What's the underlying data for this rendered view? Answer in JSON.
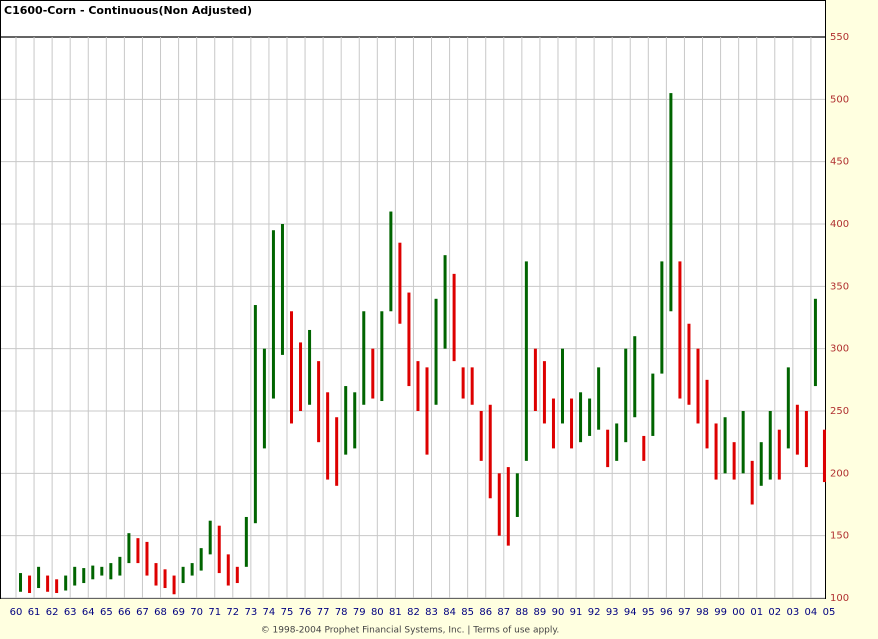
{
  "chart_data": {
    "type": "range-bar",
    "title": "C1600-Corn - Continuous(Non Adjusted)",
    "footer": "© 1998-2004 Prophet Financial Systems, Inc. | Terms of use apply.",
    "up_color": "#006400",
    "down_color": "#dd0000",
    "grid": true,
    "x": [
      1960.25,
      1960.75,
      1961.25,
      1961.75,
      1962.25,
      1962.75,
      1963.25,
      1963.75,
      1964.25,
      1964.75,
      1965.25,
      1965.75,
      1966.25,
      1966.75,
      1967.25,
      1967.75,
      1968.25,
      1968.75,
      1969.25,
      1969.75,
      1970.25,
      1970.75,
      1971.25,
      1971.75,
      1972.25,
      1972.75,
      1973.25,
      1973.75,
      1974.25,
      1974.75,
      1975.25,
      1975.75,
      1976.25,
      1976.75,
      1977.25,
      1977.75,
      1978.25,
      1978.75,
      1979.25,
      1979.75,
      1980.25,
      1980.75,
      1981.25,
      1981.75,
      1982.25,
      1982.75,
      1983.25,
      1983.75,
      1984.25,
      1984.75,
      1985.25,
      1985.75,
      1986.25,
      1986.75,
      1987.25,
      1987.75,
      1988.25,
      1988.75,
      1989.25,
      1989.75,
      1990.25,
      1990.75,
      1991.25,
      1991.75,
      1992.25,
      1992.75,
      1993.25,
      1993.75,
      1994.25,
      1994.75,
      1995.25,
      1995.75,
      1996.25,
      1996.75,
      1997.25,
      1997.75,
      1998.25,
      1998.75,
      1999.25,
      1999.75,
      2000.25,
      2000.75,
      2001.25,
      2001.75,
      2002.25,
      2002.75,
      2003.25,
      2003.75,
      2004.25,
      2004.75
    ],
    "high": [
      120,
      118,
      125,
      118,
      115,
      118,
      125,
      124,
      126,
      125,
      128,
      133,
      152,
      148,
      145,
      128,
      123,
      118,
      125,
      128,
      140,
      162,
      158,
      135,
      125,
      165,
      335,
      300,
      395,
      400,
      330,
      305,
      315,
      290,
      265,
      245,
      270,
      265,
      330,
      300,
      330,
      410,
      385,
      345,
      290,
      285,
      340,
      375,
      360,
      285,
      285,
      250,
      255,
      200,
      205,
      200,
      370,
      300,
      290,
      260,
      300,
      260,
      265,
      260,
      285,
      235,
      240,
      300,
      310,
      230,
      280,
      370,
      505,
      370,
      320,
      300,
      275,
      240,
      245,
      225,
      250,
      210,
      225,
      250,
      235,
      285,
      255,
      250,
      340,
      235
    ],
    "low": [
      105,
      104,
      108,
      105,
      104,
      106,
      110,
      112,
      115,
      118,
      115,
      118,
      128,
      128,
      118,
      110,
      108,
      103,
      112,
      118,
      122,
      135,
      120,
      110,
      112,
      125,
      160,
      220,
      260,
      295,
      240,
      250,
      255,
      225,
      195,
      190,
      215,
      220,
      255,
      260,
      258,
      330,
      320,
      270,
      250,
      215,
      255,
      300,
      290,
      260,
      255,
      210,
      180,
      150,
      142,
      165,
      210,
      250,
      240,
      220,
      240,
      220,
      225,
      230,
      235,
      205,
      210,
      225,
      245,
      210,
      230,
      280,
      330,
      260,
      255,
      240,
      220,
      195,
      200,
      195,
      200,
      175,
      190,
      195,
      195,
      220,
      215,
      205,
      270,
      193
    ],
    "xlim": [
      1959.17,
      2004.78
    ],
    "xticks": [
      {
        "value": 1960,
        "label": "60"
      },
      {
        "value": 1961,
        "label": "61"
      },
      {
        "value": 1962,
        "label": "62"
      },
      {
        "value": 1963,
        "label": "63"
      },
      {
        "value": 1964,
        "label": "64"
      },
      {
        "value": 1965,
        "label": "65"
      },
      {
        "value": 1966,
        "label": "66"
      },
      {
        "value": 1967,
        "label": "67"
      },
      {
        "value": 1968,
        "label": "68"
      },
      {
        "value": 1969,
        "label": "69"
      },
      {
        "value": 1970,
        "label": "70"
      },
      {
        "value": 1971,
        "label": "71"
      },
      {
        "value": 1972,
        "label": "72"
      },
      {
        "value": 1973,
        "label": "73"
      },
      {
        "value": 1974,
        "label": "74"
      },
      {
        "value": 1975,
        "label": "75"
      },
      {
        "value": 1976,
        "label": "76"
      },
      {
        "value": 1977,
        "label": "77"
      },
      {
        "value": 1978,
        "label": "78"
      },
      {
        "value": 1979,
        "label": "79"
      },
      {
        "value": 1980,
        "label": "80"
      },
      {
        "value": 1981,
        "label": "81"
      },
      {
        "value": 1982,
        "label": "82"
      },
      {
        "value": 1983,
        "label": "83"
      },
      {
        "value": 1984,
        "label": "84"
      },
      {
        "value": 1985,
        "label": "85"
      },
      {
        "value": 1986,
        "label": "86"
      },
      {
        "value": 1987,
        "label": "87"
      },
      {
        "value": 1988,
        "label": "88"
      },
      {
        "value": 1989,
        "label": "89"
      },
      {
        "value": 1990,
        "label": "90"
      },
      {
        "value": 1991,
        "label": "91"
      },
      {
        "value": 1992,
        "label": "92"
      },
      {
        "value": 1993,
        "label": "93"
      },
      {
        "value": 1994,
        "label": "94"
      },
      {
        "value": 1995,
        "label": "95"
      },
      {
        "value": 1996,
        "label": "96"
      },
      {
        "value": 1997,
        "label": "97"
      },
      {
        "value": 1998,
        "label": "98"
      },
      {
        "value": 1999,
        "label": "99"
      },
      {
        "value": 2000,
        "label": "00"
      },
      {
        "value": 2001,
        "label": "01"
      },
      {
        "value": 2002,
        "label": "02"
      },
      {
        "value": 2003,
        "label": "03"
      },
      {
        "value": 2004,
        "label": "04"
      },
      {
        "value": 2005,
        "label": "05"
      }
    ],
    "ylim": [
      100,
      550
    ],
    "yticks": [
      100,
      150,
      200,
      250,
      300,
      350,
      400,
      450,
      500,
      550
    ]
  }
}
